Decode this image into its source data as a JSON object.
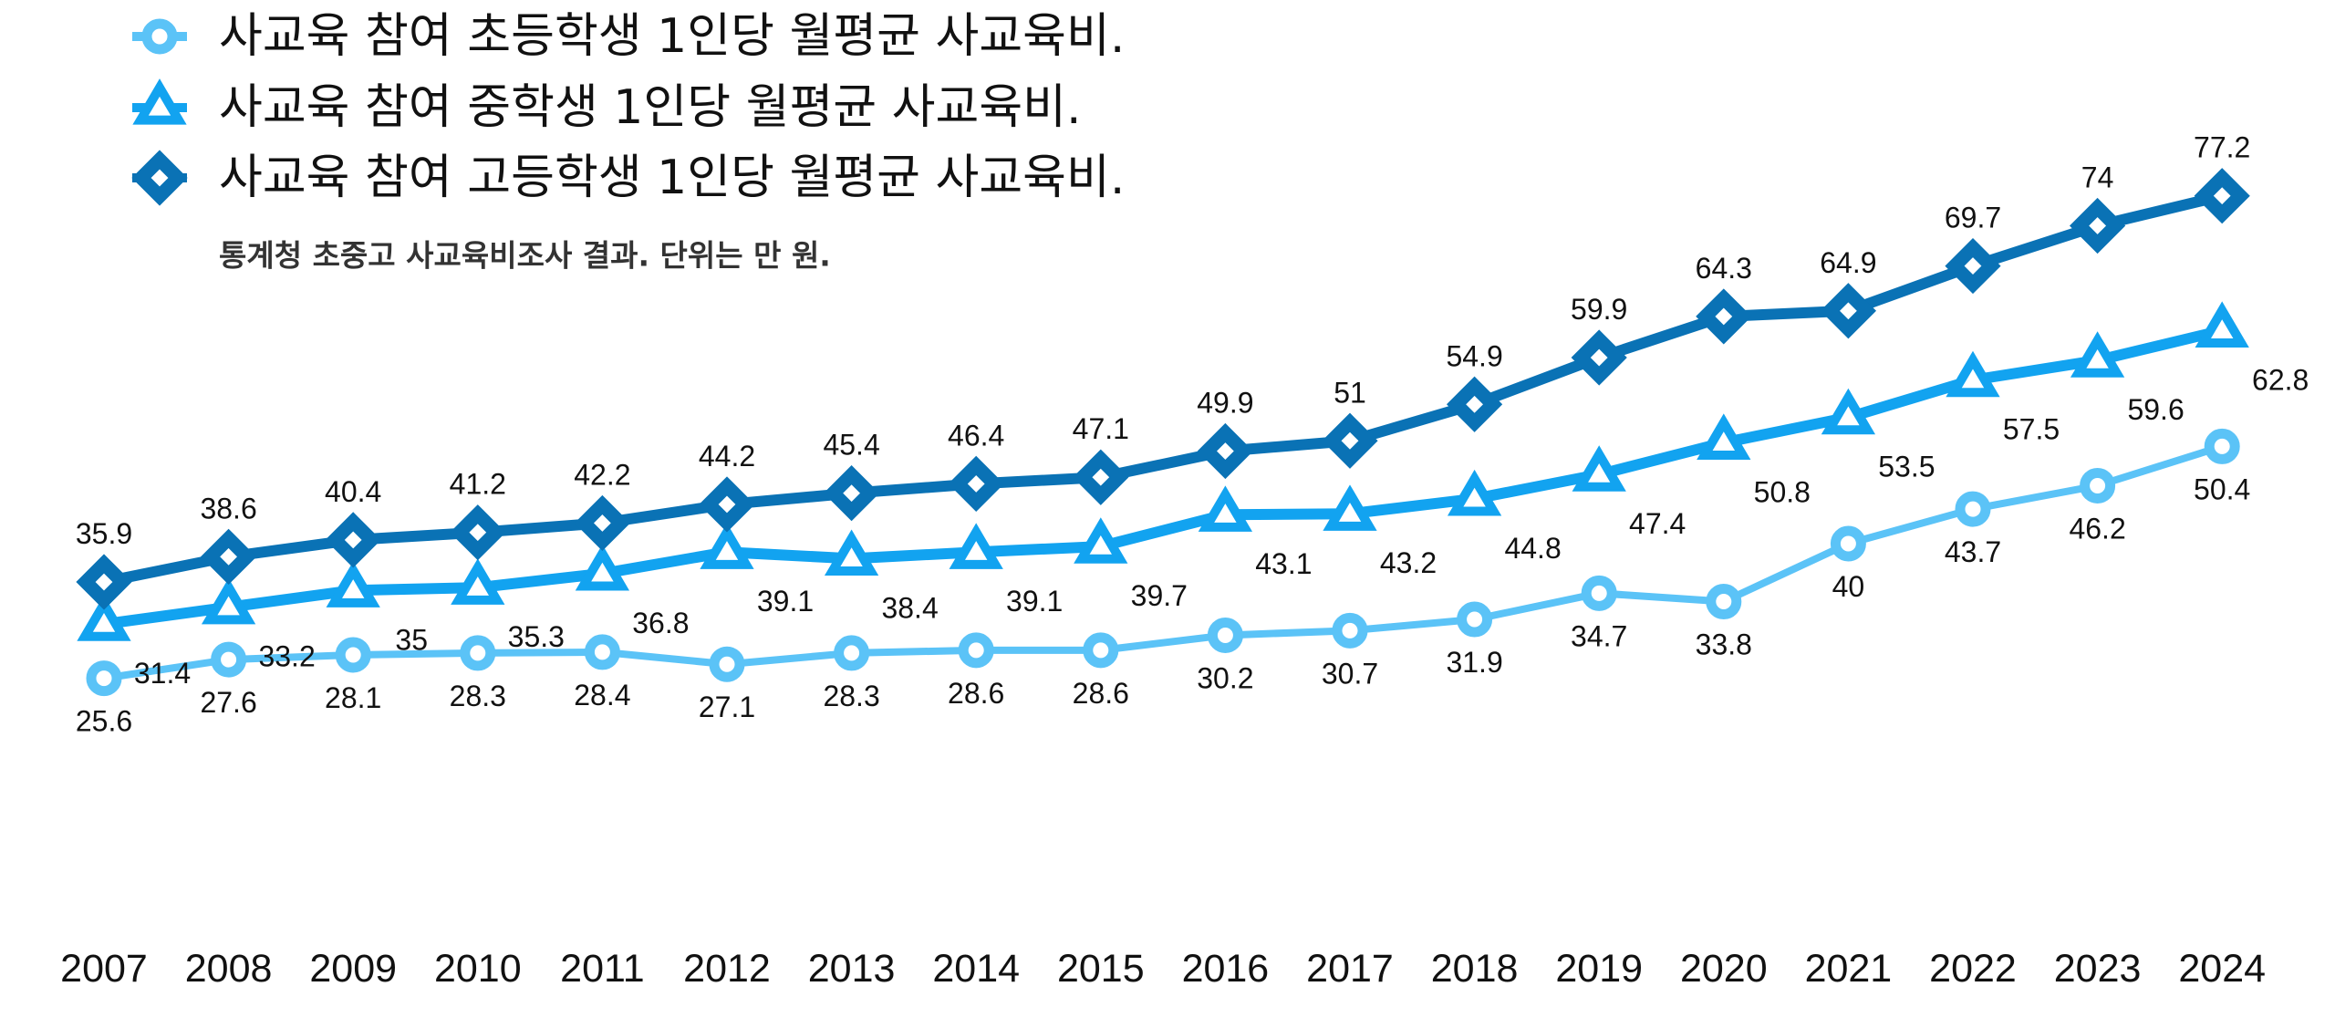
{
  "chart_data": {
    "type": "line",
    "title": "",
    "subtitle": "통계청 초중고 사교육비조사 결과. 단위는 만 원.",
    "xlabel": "",
    "ylabel": "",
    "grid": false,
    "legend_position": "top-left",
    "x": [
      "2007",
      "2008",
      "2009",
      "2010",
      "2011",
      "2012",
      "2013",
      "2014",
      "2015",
      "2016",
      "2017",
      "2018",
      "2019",
      "2020",
      "2021",
      "2022",
      "2023",
      "2024"
    ],
    "ylim": [
      0,
      100
    ],
    "series": [
      {
        "name": "사교육 참여 초등학생 1인당 월평균 사교육비.",
        "marker": "circle",
        "color": "#5BC3F7",
        "label_position": "below",
        "values": [
          25.6,
          27.6,
          28.1,
          28.3,
          28.4,
          27.1,
          28.3,
          28.6,
          28.6,
          30.2,
          30.7,
          31.9,
          34.7,
          33.8,
          40,
          43.7,
          46.2,
          50.4
        ]
      },
      {
        "name": "사교육 참여 중학생 1인당 월평균 사교육비.",
        "marker": "triangle",
        "color": "#12A3F0",
        "label_position": "below-right",
        "values": [
          31.4,
          33.2,
          35,
          35.3,
          36.8,
          39.1,
          38.4,
          39.1,
          39.7,
          43.1,
          43.2,
          44.8,
          47.4,
          50.8,
          53.5,
          57.5,
          59.6,
          62.8
        ]
      },
      {
        "name": "사교육 참여 고등학생 1인당 월평균 사교육비.",
        "marker": "diamond",
        "color": "#0A72B5",
        "label_position": "above",
        "values": [
          35.9,
          38.6,
          40.4,
          41.2,
          42.2,
          44.2,
          45.4,
          46.4,
          47.1,
          49.9,
          51,
          54.9,
          59.9,
          64.3,
          64.9,
          69.7,
          74,
          77.2
        ]
      }
    ]
  }
}
